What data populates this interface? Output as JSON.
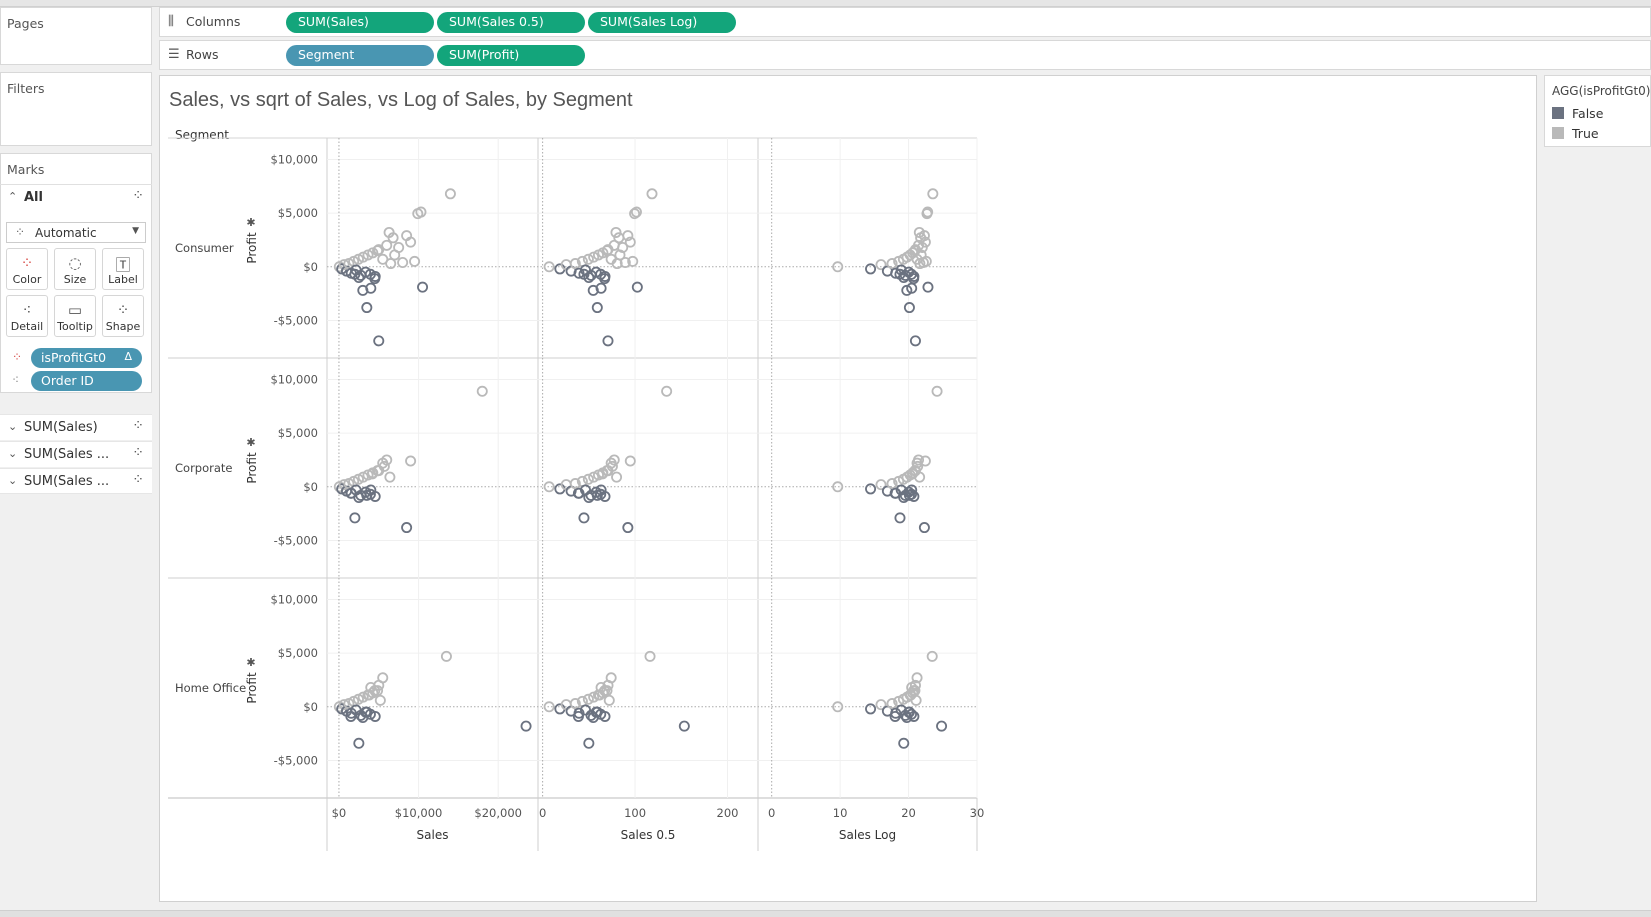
{
  "shelves": {
    "pages_label": "Pages",
    "filters_label": "Filters",
    "columns_label": "Columns",
    "rows_label": "Rows",
    "columns_pills": [
      "SUM(Sales)",
      "SUM(Sales 0.5)",
      "SUM(Sales Log)"
    ],
    "rows_pills": [
      "Segment",
      "SUM(Profit)"
    ]
  },
  "marks": {
    "title": "Marks",
    "all_label": "All",
    "mark_type": "Automatic",
    "buttons": [
      "Color",
      "Size",
      "Label",
      "Detail",
      "Tooltip",
      "Shape"
    ],
    "fields": [
      {
        "name": "isProfitGt0",
        "type": "color",
        "delta": "Δ"
      },
      {
        "name": "Order ID",
        "type": "detail",
        "delta": ""
      }
    ],
    "measures": [
      "SUM(Sales)",
      "SUM(Sales ...",
      "SUM(Sales ..."
    ]
  },
  "legend": {
    "title": "AGG(isProfitGt0)",
    "items": [
      {
        "label": "False",
        "color": "#6b7280"
      },
      {
        "label": "True",
        "color": "#b9b9b9"
      }
    ]
  },
  "colors": {
    "green_pill": "#13a57b",
    "blue_pill": "#4996b2",
    "false_mark": "#6b7280",
    "true_mark": "#b9b9b9"
  },
  "chart_data": {
    "type": "scatter",
    "title": "Sales, vs sqrt of Sales, vs Log of Sales, by Segment",
    "row_header": "Segment",
    "segments": [
      "Consumer",
      "Corporate",
      "Home Office"
    ],
    "ylabel": "Profit",
    "ylim": [
      -8500,
      12000
    ],
    "y_ticks": [
      -5000,
      0,
      5000,
      10000
    ],
    "y_tick_labels": [
      "-$5,000",
      "$0",
      "$5,000",
      "$10,000"
    ],
    "columns": [
      {
        "xlabel": "Sales",
        "xlim": [
          -1500,
          25000
        ],
        "x_ticks": [
          0,
          10000,
          20000
        ],
        "x_tick_labels": [
          "$0",
          "$10,000",
          "$20,000"
        ]
      },
      {
        "xlabel": "Sales 0.5",
        "xlim": [
          -5,
          233
        ],
        "x_ticks": [
          0,
          100,
          200
        ],
        "x_tick_labels": [
          "0",
          "100",
          "200"
        ]
      },
      {
        "xlabel": "Sales Log",
        "xlim": [
          -2,
          30
        ],
        "x_ticks": [
          0,
          10,
          20,
          30
        ],
        "x_tick_labels": [
          "0",
          "10",
          "20",
          "30"
        ]
      }
    ],
    "series": [
      {
        "name": "True",
        "points": {
          "Consumer": [
            [
              6500,
              300
            ],
            [
              7000,
              1100
            ],
            [
              9900,
              4950
            ],
            [
              10300,
              5100
            ],
            [
              14000,
              6800
            ],
            [
              8500,
              2900
            ],
            [
              9500,
              500
            ],
            [
              6800,
              2700
            ],
            [
              7500,
              1800
            ],
            [
              5000,
              1600
            ],
            [
              8000,
              400
            ],
            [
              9000,
              2300
            ],
            [
              6000,
              2000
            ],
            [
              6300,
              3200
            ],
            [
              5500,
              700
            ]
          ],
          "Corporate": [
            [
              18000,
              8900
            ],
            [
              9000,
              2400
            ],
            [
              6000,
              2500
            ],
            [
              5500,
              2200
            ],
            [
              5000,
              1500
            ],
            [
              5700,
              1900
            ],
            [
              6400,
              900
            ],
            [
              4200,
              1200
            ]
          ],
          "Home Office": [
            [
              13500,
              4700
            ],
            [
              5500,
              2700
            ],
            [
              5000,
              2000
            ],
            [
              4500,
              1500
            ],
            [
              5200,
              600
            ],
            [
              3800,
              1100
            ],
            [
              4000,
              1800
            ]
          ]
        }
      },
      {
        "name": "False",
        "points": {
          "Consumer": [
            [
              2500,
              -1000
            ],
            [
              3000,
              -2200
            ],
            [
              4000,
              -2000
            ],
            [
              3500,
              -3800
            ],
            [
              5000,
              -6900
            ],
            [
              10500,
              -1900
            ],
            [
              4500,
              -1100
            ],
            [
              2000,
              -700
            ]
          ],
          "Corporate": [
            [
              2000,
              -2900
            ],
            [
              8500,
              -3800
            ],
            [
              2500,
              -1000
            ],
            [
              3500,
              -800
            ],
            [
              1500,
              -600
            ],
            [
              4000,
              -300
            ]
          ],
          "Home Office": [
            [
              2500,
              -3400
            ],
            [
              23500,
              -1800
            ],
            [
              3000,
              -1000
            ],
            [
              1500,
              -900
            ],
            [
              3500,
              -500
            ]
          ]
        }
      }
    ]
  }
}
